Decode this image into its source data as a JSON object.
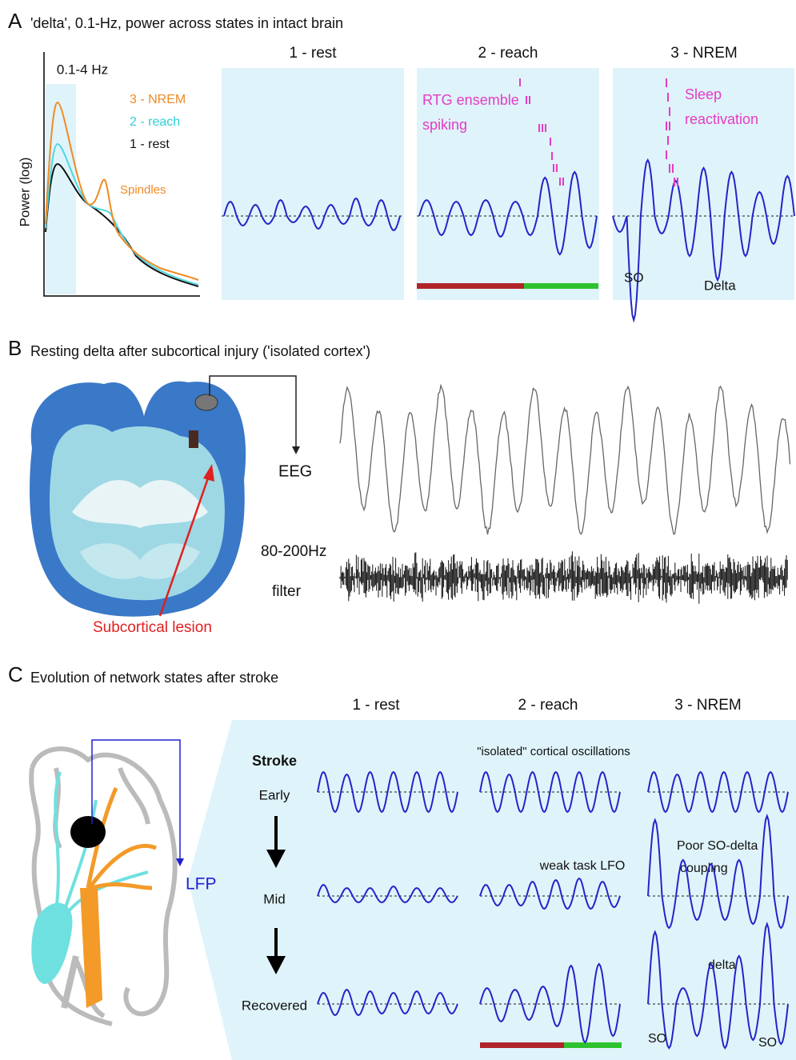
{
  "panel_a": {
    "label": "A",
    "title": "'delta', 0.1-Hz, power across states in intact brain",
    "band_label": "0.1-4 Hz",
    "y_axis_label": "Power (log)",
    "legend": [
      "3 - NREM",
      "2 - reach",
      "1 - rest"
    ],
    "spindles_label": "Spindles",
    "states": [
      "1 - rest",
      "2 - reach",
      "3 - NREM"
    ],
    "rtg_label": [
      "RTG ensemble",
      "spiking"
    ],
    "sleep_label": [
      "Sleep",
      "reactivation"
    ],
    "so_label": "SO",
    "delta_label": "Delta"
  },
  "panel_b": {
    "label": "B",
    "title": "Resting delta after subcortical injury ('isolated cortex')",
    "eeg_label": "EEG",
    "filter_label": [
      "80-200Hz",
      "filter"
    ],
    "lesion_label": "Subcortical lesion"
  },
  "panel_c": {
    "label": "C",
    "title": "Evolution of network states after stroke",
    "states": [
      "1 - rest",
      "2 - reach",
      "3 - NREM"
    ],
    "stroke_label": "Stroke",
    "rows": [
      "Early",
      "Mid",
      "Recovered"
    ],
    "lfp_label": "LFP",
    "isolated_label": "\"isolated\" cortical oscillations",
    "weak_label": "weak task LFO",
    "poor_label": [
      "Poor SO-delta",
      "coupling"
    ],
    "delta_label": "delta",
    "so_labels": [
      "SO",
      "SO"
    ]
  }
}
